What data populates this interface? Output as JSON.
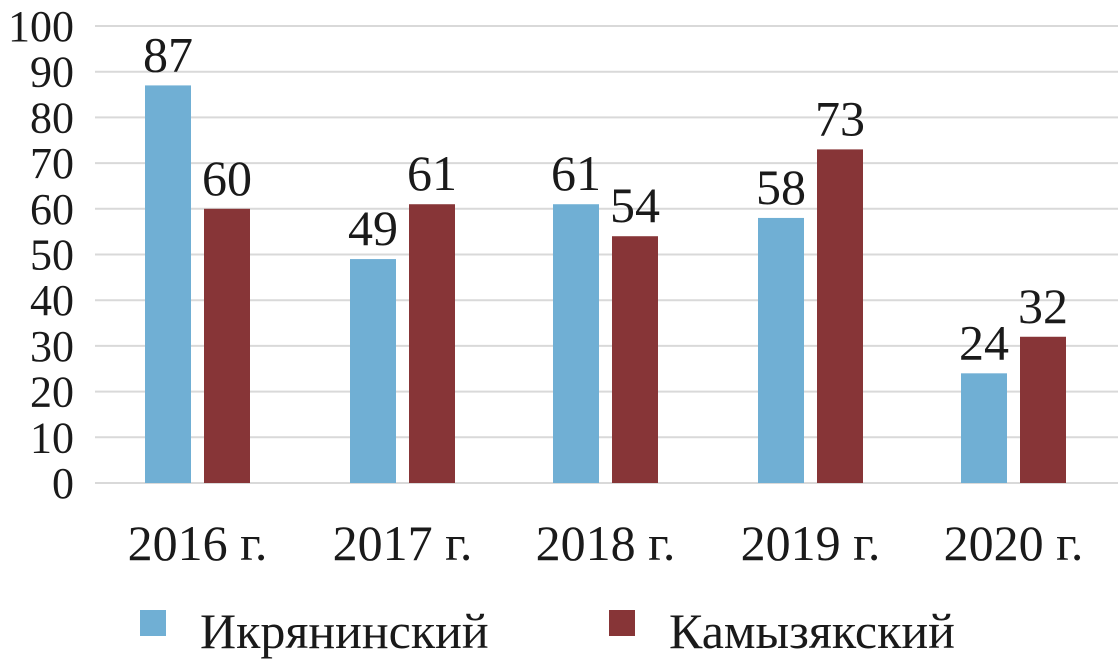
{
  "chart_data": {
    "type": "bar",
    "categories": [
      "2016 г.",
      "2017 г.",
      "2018 г.",
      "2019 г.",
      "2020 г."
    ],
    "series": [
      {
        "name": "Икрянинский",
        "values": [
          87,
          49,
          61,
          58,
          24
        ],
        "color": "#70afd4"
      },
      {
        "name": "Камызякский",
        "values": [
          60,
          61,
          54,
          73,
          32
        ],
        "color": "#873537"
      }
    ],
    "yticks": [
      0,
      10,
      20,
      30,
      40,
      50,
      60,
      70,
      80,
      90,
      100
    ],
    "ylim": [
      0,
      100
    ],
    "grid": true,
    "data_labels": true,
    "legend_position": "bottom"
  }
}
